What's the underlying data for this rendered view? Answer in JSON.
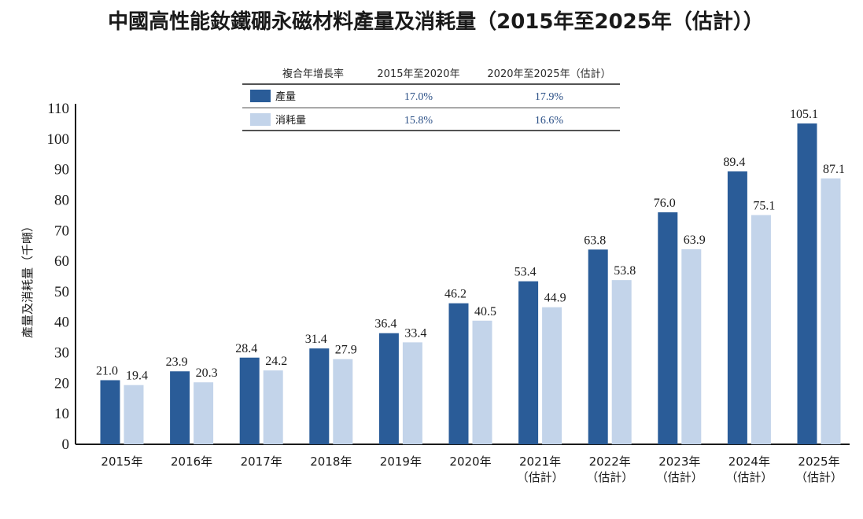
{
  "chart_data": {
    "type": "bar",
    "title": "中國高性能釹鐵硼永磁材料產量及消耗量（2015年至2025年（估計））",
    "ylabel": "產量及消耗量（千噸）",
    "xlabel": "",
    "ylim": [
      0,
      110
    ],
    "yticks": [
      "0",
      "10",
      "20",
      "30",
      "40",
      "50",
      "60",
      "70",
      "80",
      "90",
      "100",
      "110"
    ],
    "categories": [
      [
        "2015年"
      ],
      [
        "2016年"
      ],
      [
        "2017年"
      ],
      [
        "2018年"
      ],
      [
        "2019年"
      ],
      [
        "2020年"
      ],
      [
        "2021年",
        "（估計）"
      ],
      [
        "2022年",
        "（估計）"
      ],
      [
        "2023年",
        "（估計）"
      ],
      [
        "2024年",
        "（估計）"
      ],
      [
        "2025年",
        "（估計）"
      ]
    ],
    "series": [
      {
        "name": "產量",
        "color": "#2a5c98",
        "values": [
          21.0,
          23.9,
          28.4,
          31.4,
          36.4,
          46.2,
          53.4,
          63.8,
          76.0,
          89.4,
          105.1
        ],
        "labels": [
          "21.0",
          "23.9",
          "28.4",
          "31.4",
          "36.4",
          "46.2",
          "53.4",
          "63.8",
          "76.0",
          "89.4",
          "105.1"
        ]
      },
      {
        "name": "消耗量",
        "color": "#c3d4ea",
        "values": [
          19.4,
          20.3,
          24.2,
          27.9,
          33.4,
          40.5,
          44.9,
          53.8,
          63.9,
          75.1,
          87.1
        ],
        "labels": [
          "19.4",
          "20.3",
          "24.2",
          "27.9",
          "33.4",
          "40.5",
          "44.9",
          "53.8",
          "63.9",
          "75.1",
          "87.1"
        ]
      }
    ],
    "growth_table": {
      "header": [
        "複合年增長率",
        "2015年至2020年",
        "2020年至2025年（估計）"
      ],
      "rows": [
        {
          "series": "產量",
          "values": [
            "17.0%",
            "17.9%"
          ]
        },
        {
          "series": "消耗量",
          "values": [
            "15.8%",
            "16.6%"
          ]
        }
      ]
    },
    "grid": false,
    "legend": "top-center"
  }
}
